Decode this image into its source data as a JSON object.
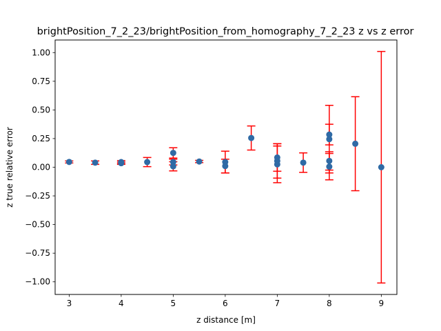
{
  "chart_data": {
    "type": "scatter",
    "title": "brightPosition_7_2_23/brightPosition_from_homography_7_2_23 z vs z error",
    "xlabel": "z distance [m]",
    "ylabel": "z true relative error",
    "xlim": [
      2.73,
      9.3
    ],
    "ylim": [
      -1.11,
      1.11
    ],
    "xticks": [
      3,
      4,
      5,
      6,
      7,
      8,
      9
    ],
    "xtick_labels": [
      "3",
      "4",
      "5",
      "6",
      "7",
      "8",
      "9"
    ],
    "yticks": [
      -1.0,
      -0.75,
      -0.5,
      -0.25,
      0.0,
      0.25,
      0.5,
      0.75,
      1.0
    ],
    "ytick_labels": [
      "−1.00",
      "−0.75",
      "−0.50",
      "−0.25",
      "0.00",
      "0.25",
      "0.50",
      "0.75",
      "1.00"
    ],
    "grid": false,
    "colors": {
      "marker": "#2f6aa5",
      "errorbar": "#ff0000"
    },
    "points": [
      {
        "x": 3.0,
        "y": 0.046,
        "err": 0.009
      },
      {
        "x": 3.5,
        "y": 0.04,
        "err": 0.015
      },
      {
        "x": 4.0,
        "y": 0.045,
        "err": 0.013
      },
      {
        "x": 4.0,
        "y": 0.035,
        "err": 0.01
      },
      {
        "x": 4.5,
        "y": 0.045,
        "err": 0.04
      },
      {
        "x": 5.0,
        "y": 0.125,
        "err": 0.045
      },
      {
        "x": 5.0,
        "y": 0.045,
        "err": 0.025
      },
      {
        "x": 5.0,
        "y": 0.008,
        "err": 0.04
      },
      {
        "x": 5.5,
        "y": 0.05,
        "err": 0.01
      },
      {
        "x": 6.0,
        "y": 0.045,
        "err": 0.095
      },
      {
        "x": 6.0,
        "y": 0.01,
        "err": 0.06
      },
      {
        "x": 6.5,
        "y": 0.255,
        "err": 0.105
      },
      {
        "x": 7.0,
        "y": 0.085,
        "err": 0.12
      },
      {
        "x": 7.0,
        "y": 0.055,
        "err": 0.15
      },
      {
        "x": 7.0,
        "y": 0.025,
        "err": 0.16
      },
      {
        "x": 7.5,
        "y": 0.04,
        "err": 0.085
      },
      {
        "x": 8.0,
        "y": 0.285,
        "err": 0.09
      },
      {
        "x": 8.0,
        "y": 0.245,
        "err": 0.295
      },
      {
        "x": 8.0,
        "y": 0.055,
        "err": 0.08
      },
      {
        "x": 8.0,
        "y": 0.005,
        "err": 0.115
      },
      {
        "x": 8.5,
        "y": 0.205,
        "err": 0.41
      },
      {
        "x": 9.0,
        "y": 0.0,
        "err": 1.01
      }
    ]
  }
}
